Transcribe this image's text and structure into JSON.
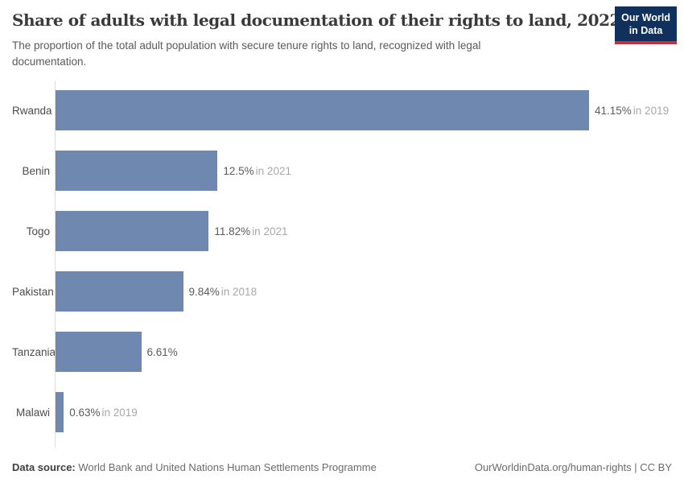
{
  "header": {
    "title": "Share of adults with legal documentation of their rights to land, 2022",
    "subtitle": "The proportion of the total adult population with secure tenure rights to land, recognized with legal documentation.",
    "logo": {
      "line1": "Our World",
      "line2": "in Data"
    }
  },
  "chart_data": {
    "type": "bar",
    "orientation": "horizontal",
    "title": "Share of adults with legal documentation of their rights to land, 2022",
    "subtitle": "The proportion of the total adult population with secure tenure rights to land, recognized with legal documentation.",
    "categories": [
      "Rwanda",
      "Benin",
      "Togo",
      "Pakistan",
      "Tanzania",
      "Malawi"
    ],
    "values": [
      41.15,
      12.5,
      11.82,
      9.84,
      6.61,
      0.63
    ],
    "value_labels": [
      "41.15%",
      "12.5%",
      "11.82%",
      "9.84%",
      "6.61%",
      "0.63%"
    ],
    "year_labels": [
      "in 2019",
      "in 2021",
      "in 2021",
      "in 2018",
      "",
      "in 2019"
    ],
    "unit": "%",
    "xlim": [
      0,
      41.15
    ],
    "grid": false,
    "legend": "none",
    "colors": {
      "bar": "#6f88b0",
      "axis_line": "#dcdcdc",
      "value_text": "#5b5b5b",
      "year_text": "#a8a8a8",
      "logo_navy": "#12305c",
      "logo_red": "#c0323e"
    }
  },
  "footer": {
    "source_label": "Data source:",
    "source_text": "World Bank and United Nations Human Settlements Programme",
    "credit": "OurWorldinData.org/human-rights | CC BY"
  }
}
